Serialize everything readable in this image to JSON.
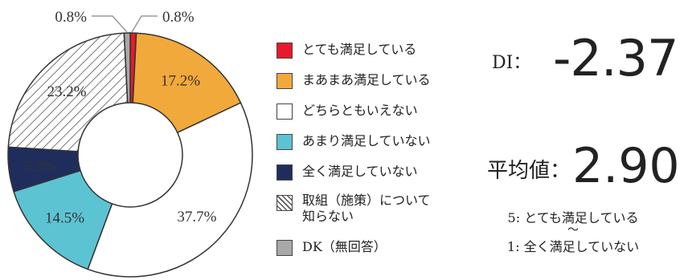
{
  "chart_data": {
    "type": "pie",
    "donut": true,
    "slices": [
      {
        "label": "とても満足している",
        "value": 0.8,
        "color": "#e8192c",
        "pattern": "solid",
        "text": ""
      },
      {
        "label": "まあまあ満足している",
        "value": 17.2,
        "color": "#f2a93b",
        "pattern": "solid",
        "text": "17.2%"
      },
      {
        "label": "どちらともいえない",
        "value": 37.7,
        "color": "#ffffff",
        "pattern": "solid",
        "text": "37.7%"
      },
      {
        "label": "あまり満足していない",
        "value": 14.5,
        "color": "#5cc3d3",
        "pattern": "solid",
        "text": "14.5%"
      },
      {
        "label": "全く満足していない",
        "value": 5.9,
        "color": "#1f2d5c",
        "pattern": "solid",
        "text": "5.9%"
      },
      {
        "label": "取組（施策）について知らない",
        "value": 23.2,
        "color": "#ffffff",
        "pattern": "hatch",
        "text": "23.2%"
      },
      {
        "label": "DK（無回答）",
        "value": 0.8,
        "color": "#a8a8a8",
        "pattern": "solid",
        "text": ""
      }
    ],
    "callouts": {
      "left": "0.8%",
      "right": "0.8%"
    }
  },
  "legend": [
    {
      "label": "とても満足している",
      "color": "#e8192c",
      "pattern": "solid"
    },
    {
      "label": "まあまあ満足している",
      "color": "#f2a93b",
      "pattern": "solid"
    },
    {
      "label": "どちらともいえない",
      "color": "#ffffff",
      "pattern": "solid"
    },
    {
      "label": "あまり満足していない",
      "color": "#5cc3d3",
      "pattern": "solid"
    },
    {
      "label": "全く満足していない",
      "color": "#1f2d5c",
      "pattern": "solid"
    },
    {
      "label": "取組（施策）について\n知らない",
      "color": "#ffffff",
      "pattern": "hatch"
    },
    {
      "label": "DK（無回答）",
      "color": "#a8a8a8",
      "pattern": "solid"
    }
  ],
  "stats": {
    "di_label": "DI：",
    "di_value": "-2.37",
    "mean_label": "平均値：",
    "mean_value": "2.90",
    "scale_top": "5: とても満足している",
    "scale_mid": "〜",
    "scale_bottom": "1: 全く満足していない"
  }
}
